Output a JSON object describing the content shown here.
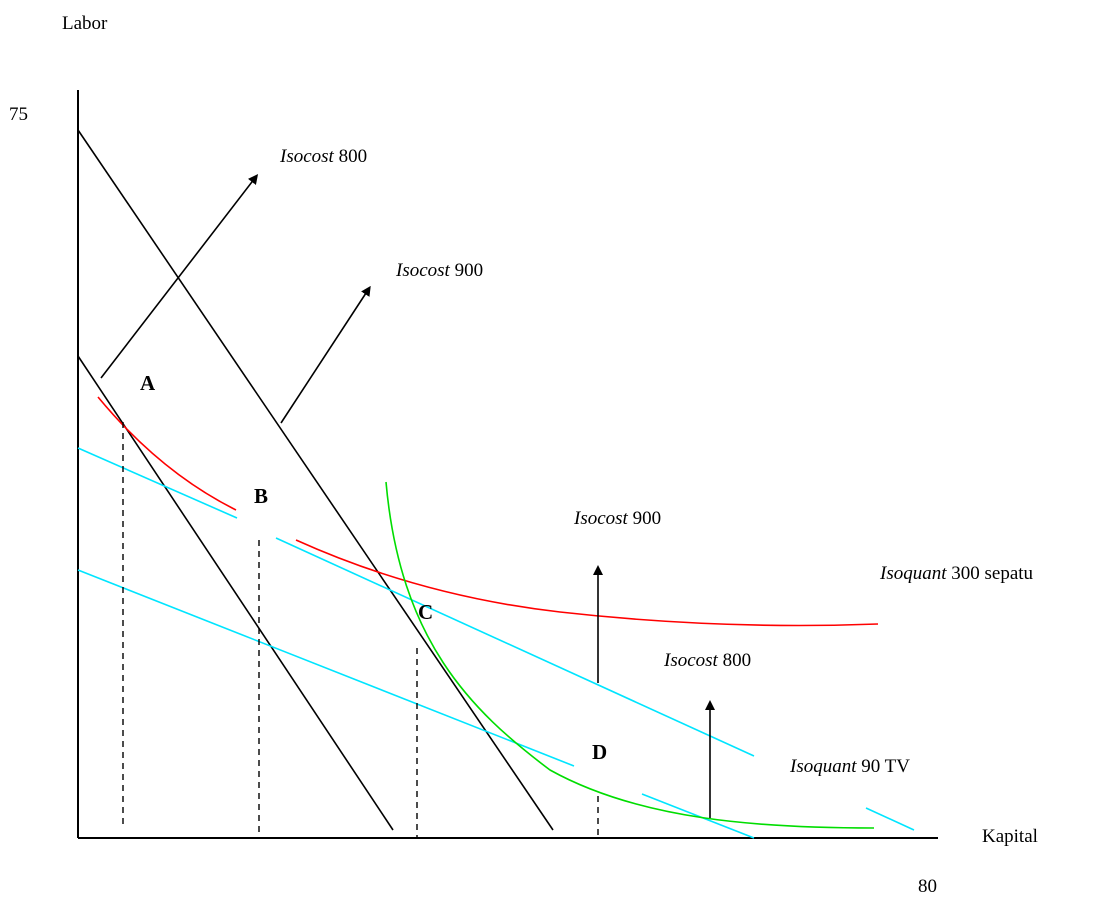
{
  "axes": {
    "y_label": "Labor",
    "x_label": "Kapital",
    "y_max_label": "75",
    "x_max_label": "80"
  },
  "labels": {
    "isocost_800_top": {
      "word": "Isocost",
      "value": "800"
    },
    "isocost_900_top": {
      "word": "Isocost",
      "value": "900"
    },
    "isocost_900_right": {
      "word": "Isocost",
      "value": "900"
    },
    "isocost_800_right": {
      "word": "Isocost",
      "value": "800"
    },
    "isoquant_shoes": {
      "word": "Isoquant",
      "value": "300 sepatu"
    },
    "isoquant_tv": {
      "word": "Isoquant",
      "value": "90 TV"
    }
  },
  "points": [
    "A",
    "B",
    "C",
    "D"
  ],
  "colors": {
    "isocost_shoes": "#000000",
    "isocost_tv": "#00e5ff",
    "isoquant_shoes": "#ff0000",
    "isoquant_tv": "#00e000"
  }
}
